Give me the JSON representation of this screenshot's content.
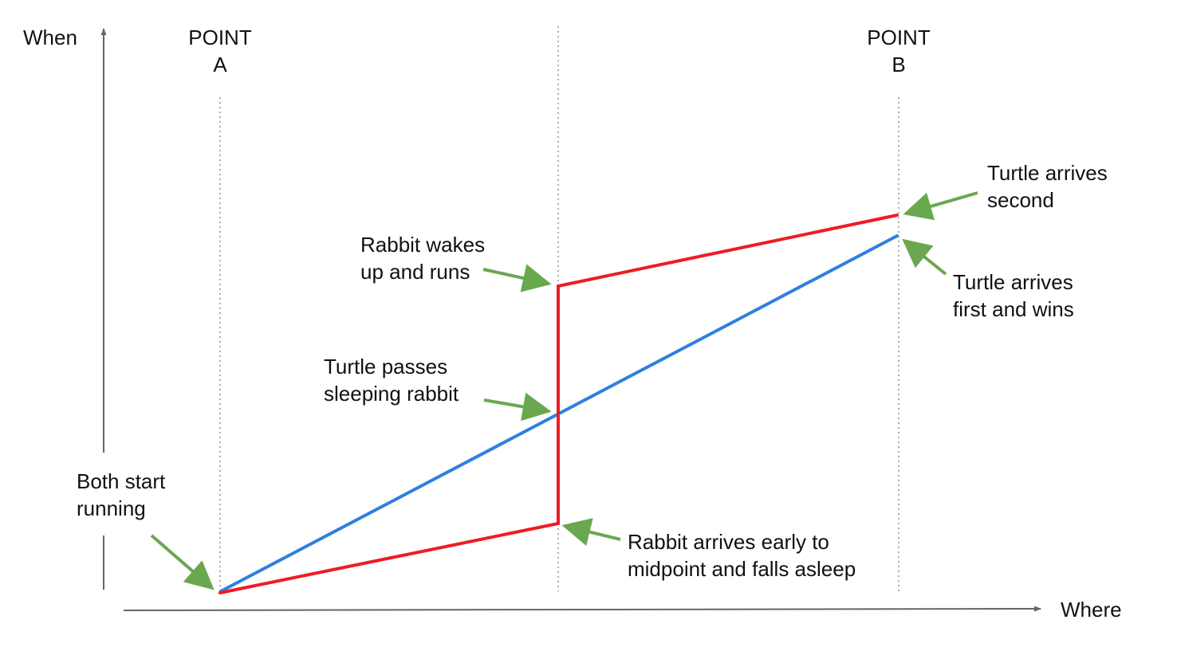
{
  "axes": {
    "y_label": "When",
    "x_label": "Where"
  },
  "points": {
    "a": {
      "line1": "POINT",
      "line2": "A"
    },
    "b": {
      "line1": "POINT",
      "line2": "B"
    }
  },
  "annotations": {
    "both_start": {
      "line1": "Both start",
      "line2": "running"
    },
    "rabbit_wakes": {
      "line1": "Rabbit wakes",
      "line2": "up and runs"
    },
    "turtle_passes": {
      "line1": "Turtle passes",
      "line2": "sleeping rabbit"
    },
    "rabbit_arrives_mid": {
      "line1": "Rabbit arrives early to",
      "line2": "midpoint and falls asleep"
    },
    "turtle_second": {
      "line1": "Turtle arrives",
      "line2": "second"
    },
    "turtle_first": {
      "line1": "Turtle arrives",
      "line2": "first and wins"
    }
  },
  "colors": {
    "rabbit": "#ee1c25",
    "turtle": "#2f7fe0",
    "arrow": "#6aa84f",
    "axis": "#666666",
    "guide": "#999999"
  }
}
